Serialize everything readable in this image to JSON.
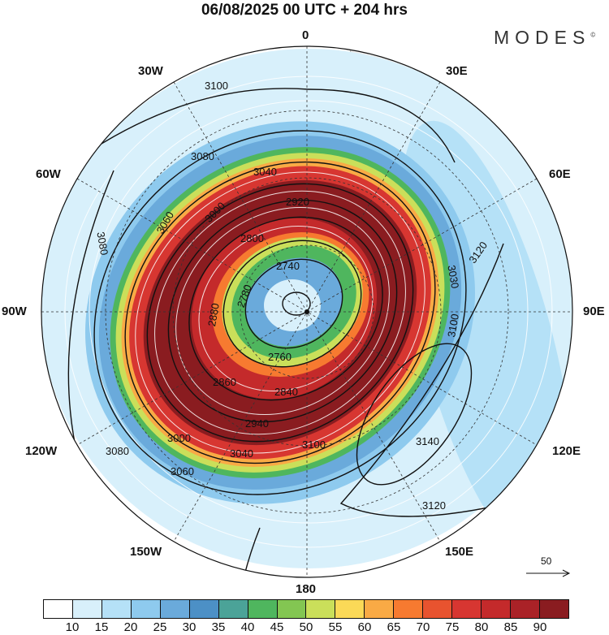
{
  "title": "06/08/2025  00 UTC  + 204 hrs",
  "logo": "MODES",
  "logo_mark": "©",
  "longitude_labels": {
    "n": "0",
    "ne": "30E",
    "e1": "60E",
    "e": "90E",
    "se1": "120E",
    "se": "150E",
    "s": "180",
    "sw": "150W",
    "w1": "120W",
    "w": "90W",
    "nw1": "60W",
    "nw": "30W"
  },
  "contour_labels": [
    "3100",
    "3080",
    "3040",
    "3060",
    "3000",
    "2920",
    "2800",
    "2740",
    "2780",
    "2760",
    "2880",
    "2860",
    "2840",
    "2940",
    "3000",
    "3040",
    "3060",
    "3080",
    "3100",
    "3120",
    "3140",
    "3120",
    "3100",
    "3080",
    "3030"
  ],
  "reference_vector": {
    "label": "50"
  },
  "colorbar": {
    "labels": [
      "10",
      "15",
      "20",
      "25",
      "30",
      "35",
      "40",
      "45",
      "50",
      "55",
      "60",
      "65",
      "70",
      "75",
      "80",
      "85",
      "90"
    ],
    "colors": [
      "#ffffff",
      "#d8f0fb",
      "#b5e1f7",
      "#8ecaee",
      "#6aaadb",
      "#4c90c6",
      "#4ba398",
      "#4fb65e",
      "#83c652",
      "#cadf5a",
      "#fbd957",
      "#f9aa45",
      "#f77a30",
      "#e8532f",
      "#d73631",
      "#c42a2b",
      "#aa2227",
      "#8a1c20"
    ]
  }
}
